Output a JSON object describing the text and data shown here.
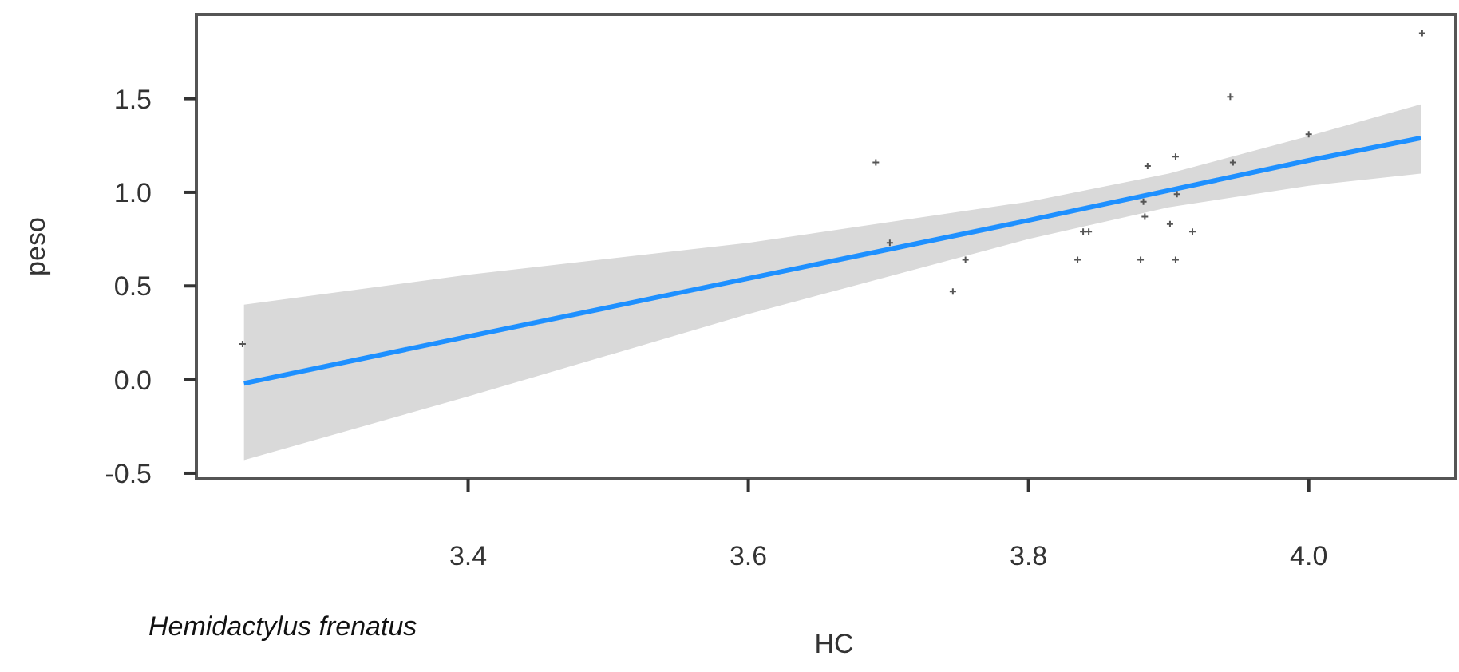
{
  "chart_data": {
    "type": "scatter",
    "xlabel": "HC",
    "ylabel": "peso",
    "annotations": [
      "Hemidactylus frenatus"
    ],
    "xlim": [
      3.206,
      4.105
    ],
    "ylim": [
      -0.53,
      1.95
    ],
    "xticks": [
      3.4,
      3.6,
      3.8,
      {
        "value": 4,
        "label": "4.0"
      }
    ],
    "yticks": [
      -0.5,
      {
        "value": 0,
        "label": "0.0"
      },
      0.5,
      {
        "value": 1,
        "label": "1.0"
      },
      1.5
    ],
    "grid": false,
    "series": [
      {
        "color": "#555555",
        "marker": "cross",
        "x": [
          4.081,
          3.691,
          3.944,
          4.0,
          3.905,
          3.885,
          3.946,
          3.906,
          3.882,
          3.883,
          3.901,
          3.917,
          3.839,
          3.843,
          3.835,
          3.88,
          3.905,
          3.755,
          3.746,
          3.701,
          3.239
        ],
        "values": [
          1.85,
          1.16,
          1.51,
          1.31,
          1.19,
          1.14,
          1.16,
          0.99,
          0.95,
          0.87,
          0.83,
          0.79,
          0.79,
          0.79,
          0.64,
          0.64,
          0.64,
          0.64,
          0.47,
          0.73,
          0.19
        ]
      },
      {
        "type": "line",
        "color": "#1e90ff",
        "marker": "none",
        "line_style": "solid",
        "x": [
          3.24,
          3.4,
          3.6,
          3.8,
          3.9,
          4.0,
          4.08
        ],
        "values": [
          -0.02,
          0.23,
          0.54,
          0.85,
          1.01,
          1.17,
          1.29
        ],
        "lower": [
          -0.43,
          -0.09,
          0.35,
          0.75,
          0.92,
          1.035,
          1.1
        ],
        "upper": [
          0.4,
          0.56,
          0.73,
          0.95,
          1.1,
          1.3,
          1.47
        ]
      }
    ]
  }
}
